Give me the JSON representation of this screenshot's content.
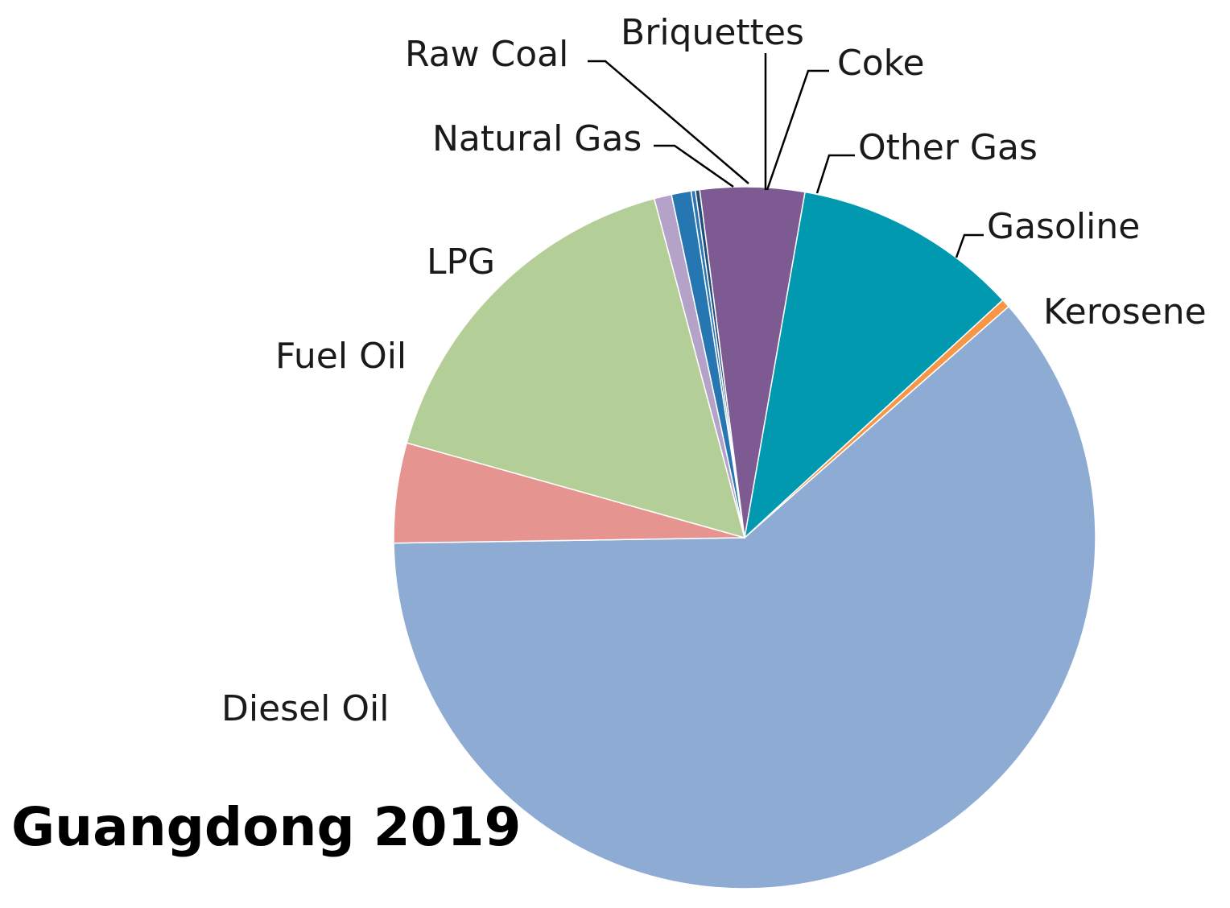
{
  "chart_data": {
    "type": "pie",
    "title": "Guangdong  2019",
    "start_angle_deg": -8.8,
    "direction": "clockwise",
    "slices": [
      {
        "label": "Briquettes",
        "value": 0.2,
        "color": "#2e75b6"
      },
      {
        "label": "Coke",
        "value": 0.2,
        "color": "#1f4e79"
      },
      {
        "label": "Other Gas",
        "value": 4.8,
        "color": "#7e5a92"
      },
      {
        "label": "Gasoline",
        "value": 10.4,
        "color": "#0099b0"
      },
      {
        "label": "Kerosene",
        "value": 0.4,
        "color": "#f79646"
      },
      {
        "label": "Diesel Oil",
        "value": 61.2,
        "color": "#8eacd3"
      },
      {
        "label": "Fuel Oil",
        "value": 4.6,
        "color": "#e6948f"
      },
      {
        "label": "LPG",
        "value": 16.5,
        "color": "#b3ce96"
      },
      {
        "label": "Natural Gas",
        "value": 0.8,
        "color": "#b4a2c8"
      },
      {
        "label": "Raw Coal",
        "value": 0.9,
        "color": "#2576b1"
      }
    ]
  }
}
